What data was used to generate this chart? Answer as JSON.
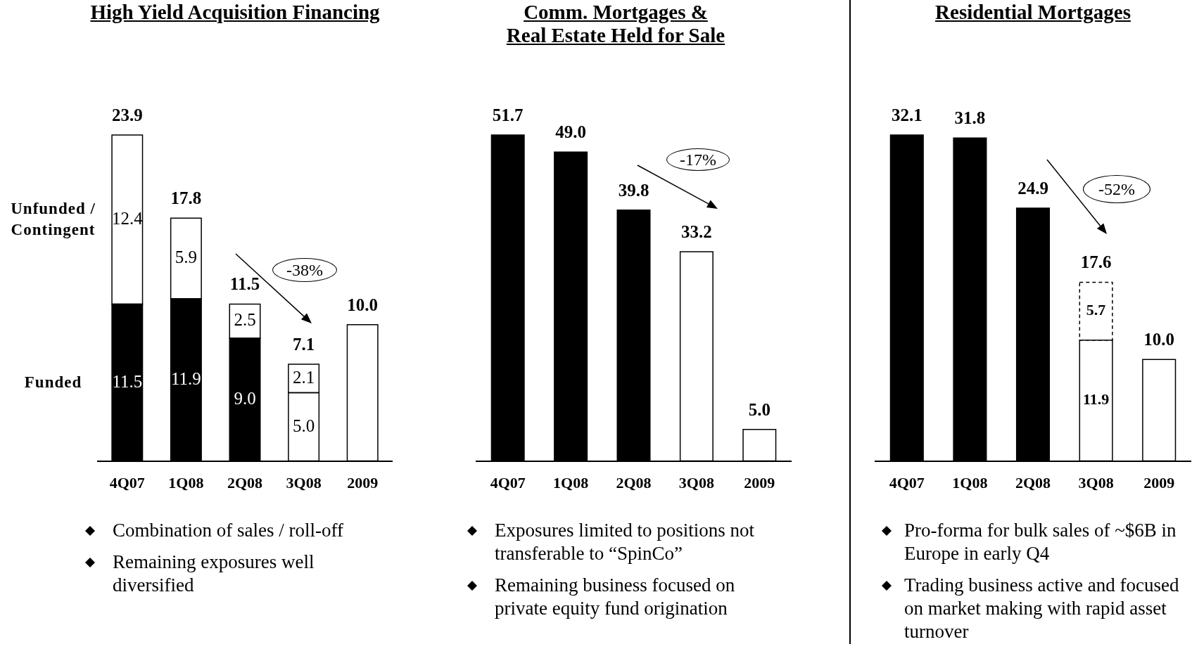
{
  "chart_data": [
    {
      "type": "bar",
      "title": "High Yield Acquisition Financing",
      "categories": [
        "4Q07",
        "1Q08",
        "2Q08",
        "3Q08",
        "2009"
      ],
      "stacked": true,
      "series": [
        {
          "name": "Funded",
          "colors": [
            "#000000",
            "#000000",
            "#000000",
            "#ffffff",
            "#ffffff"
          ],
          "values": [
            11.5,
            11.9,
            9.0,
            5.0,
            10.0
          ],
          "value_labels": [
            "11.5",
            "11.9",
            "9.0",
            "5.0",
            null
          ]
        },
        {
          "name": "Unfunded / Contingent",
          "color": "#ffffff",
          "values": [
            12.4,
            5.9,
            2.5,
            2.1,
            null
          ],
          "value_labels": [
            "12.4",
            "5.9",
            "2.5",
            "2.1",
            null
          ]
        }
      ],
      "totals": [
        "23.9",
        "17.8",
        "11.5",
        "7.1",
        "10.0"
      ],
      "annotations": [
        "-38%",
        "Combination of sales / roll-off",
        "Remaining exposures well diversified"
      ]
    },
    {
      "type": "bar",
      "title": "Comm. Mortgages & Real Estate Held for Sale",
      "categories": [
        "4Q07",
        "1Q08",
        "2Q08",
        "3Q08",
        "2009"
      ],
      "series": [
        {
          "colors": [
            "#000000",
            "#000000",
            "#000000",
            "#ffffff",
            "#ffffff"
          ],
          "values": [
            51.7,
            49.0,
            39.8,
            33.2,
            5.0
          ],
          "value_labels": [
            "51.7",
            "49.0",
            "39.8",
            "33.2",
            "5.0"
          ]
        }
      ],
      "annotations": [
        "-17%",
        "Exposures limited to positions not transferable to “SpinCo”",
        "Remaining business focused on private equity fund origination"
      ]
    },
    {
      "type": "bar",
      "title": "Residential Mortgages",
      "categories": [
        "4Q07",
        "1Q08",
        "2Q08",
        "3Q08",
        "2009"
      ],
      "stacked": true,
      "series": [
        {
          "colors": [
            "#000000",
            "#000000",
            "#000000",
            "#ffffff",
            "#ffffff"
          ],
          "values": [
            32.1,
            31.8,
            24.9,
            11.9,
            10.0
          ],
          "value_labels": [
            null,
            null,
            null,
            "11.9",
            null
          ]
        },
        {
          "color": "#ffffff",
          "line_style": "dashed",
          "values": [
            null,
            null,
            null,
            5.7,
            null
          ],
          "value_labels": [
            null,
            null,
            null,
            "5.7",
            null
          ]
        }
      ],
      "totals": [
        "32.1",
        "31.8",
        "24.9",
        "17.6",
        "10.0"
      ],
      "annotations": [
        "-52%",
        "Pro-forma for bulk sales of ~$6B in Europe in early Q4",
        "Trading business active and focused on market making with rapid asset turnover"
      ]
    }
  ]
}
